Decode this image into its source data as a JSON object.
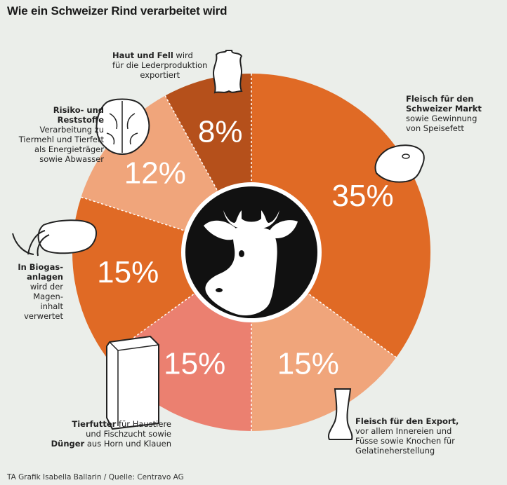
{
  "title": "Wie ein Schweizer Rind verarbeitet wird",
  "source": "TA Grafik Isabella Ballarin / Quelle: Centravo AG",
  "chart_data": {
    "type": "pie",
    "categories": [
      "Fleisch für den Schweizer Markt",
      "Fleisch für den Export",
      "Tierfutter / Dünger",
      "In Biogasanlagen",
      "Risiko- und Reststoffe",
      "Haut und Fell"
    ],
    "values": [
      35,
      15,
      15,
      15,
      12,
      8
    ],
    "labels": [
      "35%",
      "15%",
      "15%",
      "15%",
      "12%",
      "8%"
    ],
    "colors": [
      "#e06a25",
      "#f0a57b",
      "#eb8070",
      "#e06a25",
      "#f0a57b",
      "#b5501b"
    ],
    "start_angle_deg": 0,
    "direction": "clockwise"
  },
  "annotations": {
    "haut": {
      "bold": "Haut und Fell",
      "rest1": " wird",
      "line2": "für die Lederproduktion",
      "line3": "exportiert"
    },
    "fleisch_ch": {
      "bold1": "Fleisch für den",
      "bold2": "Schweizer Markt",
      "line3": "sowie Gewinnung",
      "line4": "von Speisefett"
    },
    "risiko": {
      "bold": "Risiko- und Reststoffe",
      "line2": "Verarbeitung zu",
      "line3": "Tiermehl und Tierfett",
      "line4": "als Energieträger",
      "line5": "sowie Abwasser"
    },
    "biogas": {
      "bold1": "In Biogas-",
      "bold2": "anlagen",
      "line3": "wird der Magen-",
      "line4": "inhalt verwertet"
    },
    "tierfutter": {
      "bold1": "Tierfutter",
      "rest1": " für Haustiere",
      "line2": "und Fischzucht sowie",
      "bold3": "Dünger",
      "rest3": " aus Horn und Klauen"
    },
    "export": {
      "bold": "Fleisch für den Export,",
      "line2": "vor allem Innereien und",
      "line3": "Füsse sowie Knochen für",
      "line4": "Gelatineherstellung"
    }
  }
}
